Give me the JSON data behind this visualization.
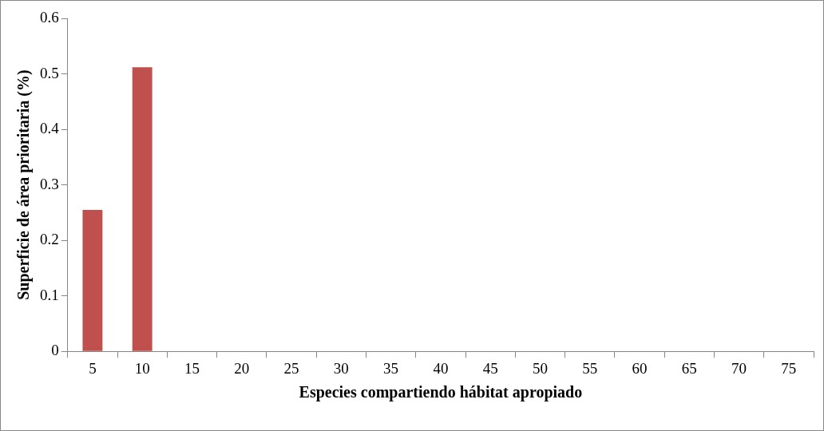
{
  "chart_data": {
    "type": "bar",
    "xlabel": "Especies compartiendo hábitat apropiado",
    "ylabel": "Superficie de área prioritaria (%)",
    "categories": [
      "5",
      "10",
      "15",
      "20",
      "25",
      "30",
      "35",
      "40",
      "45",
      "50",
      "55",
      "60",
      "65",
      "70",
      "75"
    ],
    "values": [
      0.255,
      0.512,
      0,
      0,
      0,
      0,
      0,
      0,
      0,
      0,
      0,
      0,
      0,
      0,
      0
    ],
    "color": "#c0504d",
    "ylim": [
      0,
      0.6
    ],
    "yticks": [
      0,
      0.1,
      0.2,
      0.3,
      0.4,
      0.5,
      0.6
    ],
    "grid": false,
    "legend": false
  }
}
